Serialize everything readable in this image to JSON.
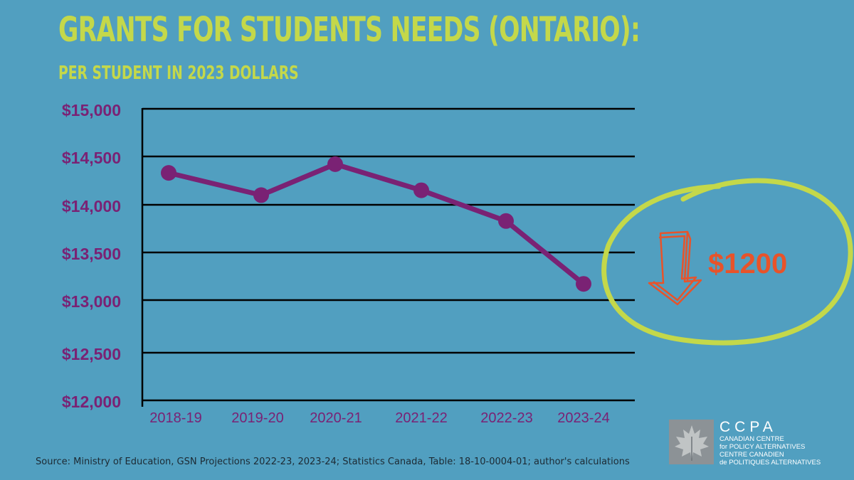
{
  "chart_data": {
    "type": "line",
    "title": "GRANTS FOR STUDENTS NEEDS (ONTARIO):",
    "subtitle": "PER STUDENT IN 2023 DOLLARS",
    "categories": [
      "2018-19",
      "2019-20",
      "2020-21",
      "2021-22",
      "2022-23",
      "2023-24"
    ],
    "series": [
      {
        "values": [
          14330,
          14100,
          14420,
          14150,
          13830,
          13170
        ]
      }
    ],
    "yticks": [
      15000,
      14500,
      14000,
      13500,
      13000,
      12500,
      12000
    ],
    "ytick_labels": [
      "$15,000",
      "$14,500",
      "$14,000",
      "$13,500",
      "$13,000",
      "$12,500",
      "$12,000"
    ],
    "ylim": [
      12000,
      15000
    ],
    "grid": true,
    "annotation": {
      "text": "$1200",
      "icon": "down-arrow-icon",
      "highlight": "circle"
    },
    "colors": {
      "background": "#519fc0",
      "title": "#c4d84a",
      "line": "#7a2274",
      "axis_labels": "#7a2274",
      "annotation": "#e8532a",
      "circle": "#c4d84a",
      "gridlines": "#000000"
    }
  },
  "source": "Source: Ministry of Education, GSN Projections 2022-23, 2023-24; Statistics Canada, Table: 18-10-0004-01; author's calculations",
  "logo": {
    "name": "CCPA",
    "line1": "CANADIAN CENTRE",
    "line2": "for POLICY ALTERNATIVES",
    "line3": "CENTRE CANADIEN",
    "line4": "de POLITIQUES ALTERNATIVES"
  }
}
